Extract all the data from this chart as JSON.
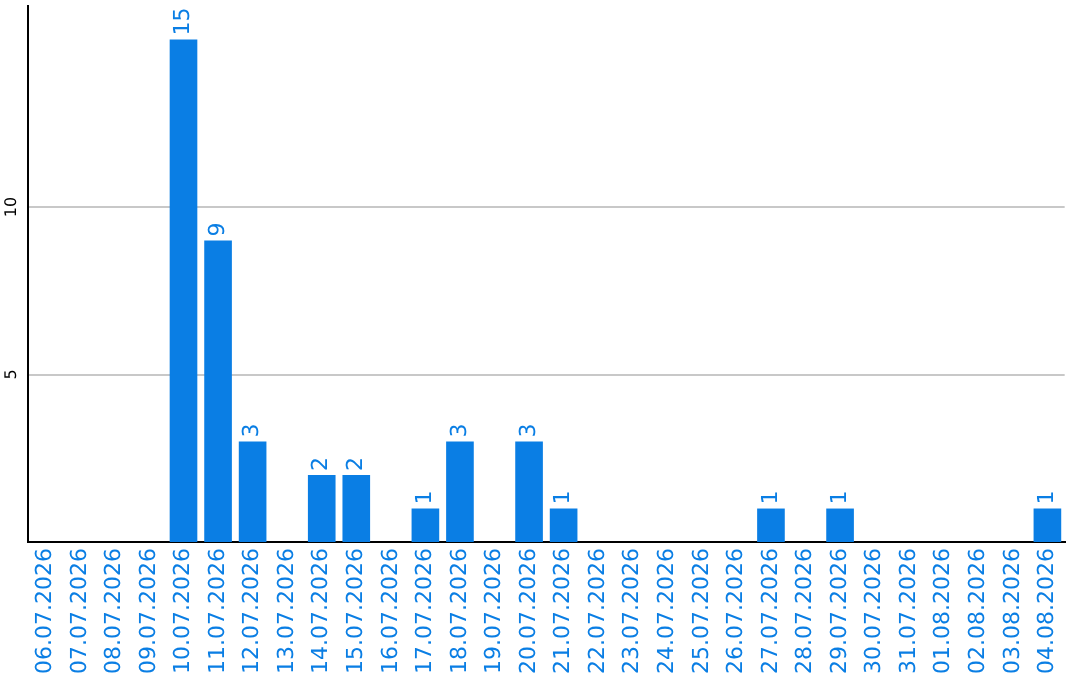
{
  "chart_data": {
    "type": "bar",
    "categories": [
      "06.07.2026",
      "07.07.2026",
      "08.07.2026",
      "09.07.2026",
      "10.07.2026",
      "11.07.2026",
      "12.07.2026",
      "13.07.2026",
      "14.07.2026",
      "15.07.2026",
      "16.07.2026",
      "17.07.2026",
      "18.07.2026",
      "19.07.2026",
      "20.07.2026",
      "21.07.2026",
      "22.07.2026",
      "23.07.2026",
      "24.07.2026",
      "25.07.2026",
      "26.07.2026",
      "27.07.2026",
      "28.07.2026",
      "29.07.2026",
      "30.07.2026",
      "31.07.2026",
      "01.08.2026",
      "02.08.2026",
      "03.08.2026",
      "04.08.2026"
    ],
    "values": [
      0,
      0,
      0,
      0,
      15,
      9,
      3,
      0,
      2,
      2,
      0,
      1,
      3,
      0,
      3,
      1,
      0,
      0,
      0,
      0,
      0,
      1,
      0,
      1,
      0,
      0,
      0,
      0,
      0,
      1
    ],
    "value_labels": [
      null,
      null,
      null,
      null,
      "15",
      "9",
      "3",
      null,
      "2",
      "2",
      null,
      "1",
      "3",
      null,
      "3",
      "1",
      null,
      null,
      null,
      null,
      null,
      "1",
      null,
      "1",
      null,
      null,
      null,
      null,
      null,
      "1"
    ],
    "color": "#0a7ee4",
    "ylim": [
      0,
      16
    ],
    "yticks": [
      5,
      10
    ],
    "grid": "y",
    "legend": false
  }
}
